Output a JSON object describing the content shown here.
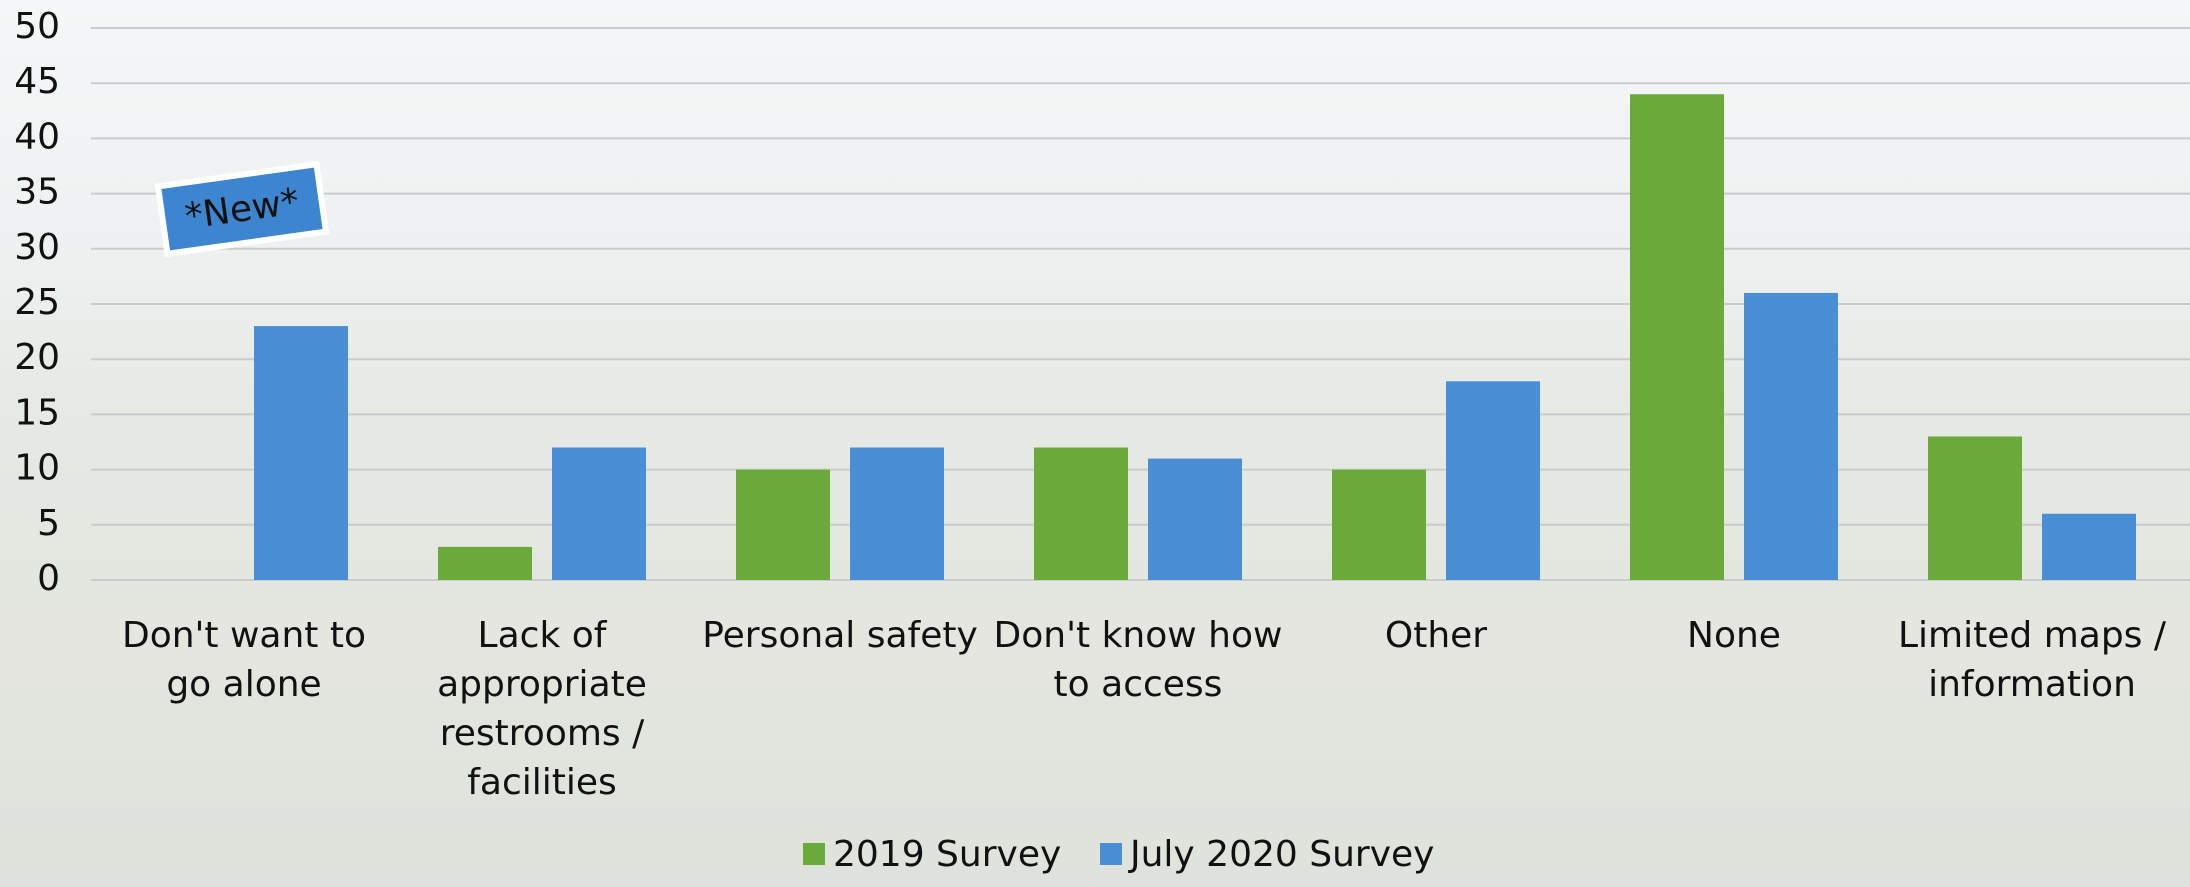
{
  "chart_data": {
    "type": "bar",
    "categories": [
      "Don't want to go alone",
      "Lack of appropriate restrooms / facilities",
      "Personal safety",
      "Don't know how to access",
      "Other",
      "None",
      "Limited maps / information"
    ],
    "series": [
      {
        "name": "2019 Survey",
        "color": "#6aaa3a",
        "values": [
          null,
          3,
          10,
          12,
          10,
          44,
          13
        ]
      },
      {
        "name": "July 2020 Survey",
        "color": "#4a8fd6",
        "values": [
          23,
          12,
          12,
          11,
          18,
          26,
          6
        ]
      }
    ],
    "ylim": [
      0,
      50
    ],
    "yticks": [
      0,
      5,
      10,
      15,
      20,
      25,
      30,
      35,
      40,
      45,
      50
    ],
    "grid": true,
    "annotation": "*New*",
    "legend": "bottom"
  }
}
